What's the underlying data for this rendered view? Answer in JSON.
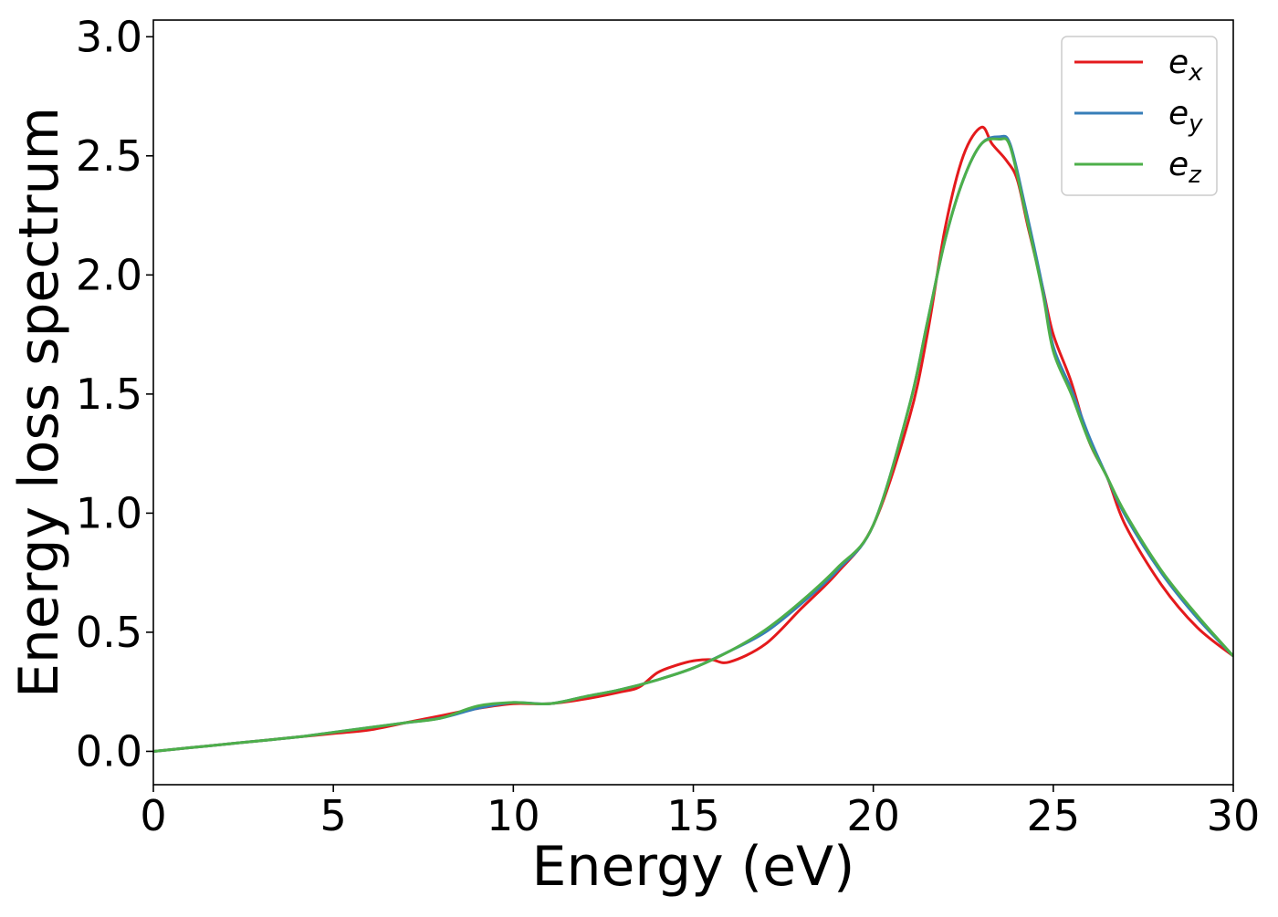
{
  "chart_data": {
    "type": "line",
    "title": "",
    "xlabel": "Energy (eV)",
    "ylabel": "Energy loss spectrum",
    "xlim": [
      0,
      30
    ],
    "ylim": [
      -0.14,
      3.07
    ],
    "xticks": [
      0,
      5,
      10,
      15,
      20,
      25,
      30
    ],
    "yticks": [
      "0.0",
      "0.5",
      "1.0",
      "1.5",
      "2.0",
      "2.5",
      "3.0"
    ],
    "grid": false,
    "legend_position": "top-right",
    "series": [
      {
        "name": "e_x",
        "label_base": "e",
        "label_sub": "x",
        "color": "#e41a1c",
        "x": [
          0,
          1,
          2,
          3,
          4,
          5,
          6,
          7,
          8,
          9,
          10,
          11,
          12,
          13,
          13.5,
          14,
          14.5,
          15,
          15.5,
          16,
          17,
          18,
          19,
          20,
          21,
          21.5,
          22,
          22.5,
          23,
          23.3,
          23.7,
          24,
          24.3,
          24.7,
          25,
          25.5,
          26,
          26.5,
          27,
          28,
          29,
          30
        ],
        "y": [
          0.0,
          0.015,
          0.03,
          0.045,
          0.06,
          0.075,
          0.09,
          0.12,
          0.15,
          0.18,
          0.2,
          0.2,
          0.22,
          0.25,
          0.27,
          0.33,
          0.36,
          0.38,
          0.385,
          0.375,
          0.45,
          0.6,
          0.75,
          0.95,
          1.4,
          1.75,
          2.2,
          2.5,
          2.62,
          2.55,
          2.48,
          2.4,
          2.2,
          1.95,
          1.75,
          1.55,
          1.3,
          1.15,
          0.95,
          0.7,
          0.52,
          0.4
        ]
      },
      {
        "name": "e_y",
        "label_base": "e",
        "label_sub": "y",
        "color": "#377eb8",
        "x": [
          0,
          1,
          2,
          3,
          4,
          5,
          6,
          7,
          8,
          9,
          10,
          11,
          12,
          13,
          14,
          15,
          16,
          17,
          18,
          19,
          20,
          21,
          21.5,
          22,
          22.5,
          23,
          23.5,
          23.8,
          24.2,
          24.7,
          25,
          25.5,
          26,
          26.5,
          27,
          28,
          29,
          30
        ],
        "y": [
          0.0,
          0.015,
          0.03,
          0.045,
          0.06,
          0.08,
          0.1,
          0.12,
          0.14,
          0.18,
          0.205,
          0.2,
          0.23,
          0.26,
          0.3,
          0.35,
          0.42,
          0.5,
          0.62,
          0.76,
          0.95,
          1.45,
          1.8,
          2.15,
          2.4,
          2.55,
          2.58,
          2.55,
          2.3,
          1.95,
          1.7,
          1.52,
          1.32,
          1.15,
          0.99,
          0.75,
          0.56,
          0.4
        ]
      },
      {
        "name": "e_z",
        "label_base": "e",
        "label_sub": "z",
        "color": "#4daf4a",
        "x": [
          0,
          1,
          2,
          3,
          4,
          5,
          6,
          7,
          8,
          9,
          10,
          11,
          12,
          13,
          14,
          15,
          16,
          17,
          18,
          19,
          20,
          21,
          21.5,
          22,
          22.5,
          23,
          23.5,
          23.8,
          24.2,
          24.7,
          25,
          25.5,
          26,
          26.5,
          27,
          28,
          29,
          30
        ],
        "y": [
          0.0,
          0.015,
          0.03,
          0.045,
          0.06,
          0.08,
          0.1,
          0.12,
          0.14,
          0.19,
          0.205,
          0.2,
          0.23,
          0.26,
          0.3,
          0.35,
          0.42,
          0.51,
          0.63,
          0.77,
          0.95,
          1.45,
          1.8,
          2.15,
          2.4,
          2.55,
          2.57,
          2.54,
          2.28,
          1.93,
          1.68,
          1.5,
          1.3,
          1.15,
          1.0,
          0.76,
          0.57,
          0.4
        ]
      }
    ]
  }
}
